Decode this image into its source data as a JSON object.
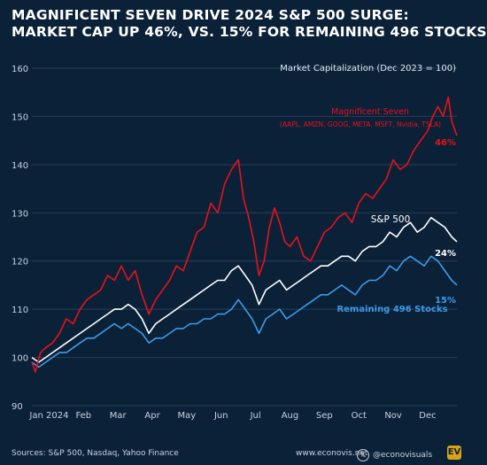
{
  "title": {
    "line1": "MAGNIFICENT SEVEN DRIVE 2024 S&P 500 SURGE:",
    "line2": "MARKET CAP UP 46%, VS. 15% FOR REMAINING 496 STOCKS"
  },
  "chart_data": {
    "type": "line",
    "subtitle": "Market Capitalization (Dec 2023 = 100)",
    "ylim": [
      90,
      160
    ],
    "yticks": [
      90,
      100,
      110,
      120,
      130,
      140,
      150,
      160
    ],
    "xlim": [
      0,
      12.35
    ],
    "xticks": [
      {
        "label": "Jan 2024",
        "x": 0.5
      },
      {
        "label": "Feb",
        "x": 1.5
      },
      {
        "label": "Mar",
        "x": 2.5
      },
      {
        "label": "Apr",
        "x": 3.5
      },
      {
        "label": "May",
        "x": 4.5
      },
      {
        "label": "Jun",
        "x": 5.5
      },
      {
        "label": "Jul",
        "x": 6.5
      },
      {
        "label": "Aug",
        "x": 7.5
      },
      {
        "label": "Sep",
        "x": 8.5
      },
      {
        "label": "Oct",
        "x": 9.5
      },
      {
        "label": "Nov",
        "x": 10.5
      },
      {
        "label": "Dec",
        "x": 11.5
      }
    ],
    "grid": "horizontal",
    "series": [
      {
        "name": "Magnificent Seven",
        "note": "(AAPL, AMZN, GOOG, META, MSFT, Nvidia, TSLA)",
        "end_label": "46%",
        "color": "#e8111a",
        "x": [
          0,
          0.1,
          0.25,
          0.4,
          0.6,
          0.8,
          1.0,
          1.2,
          1.4,
          1.6,
          1.8,
          2.0,
          2.2,
          2.4,
          2.6,
          2.8,
          3.0,
          3.2,
          3.4,
          3.6,
          3.8,
          4.0,
          4.2,
          4.4,
          4.6,
          4.8,
          5.0,
          5.2,
          5.4,
          5.6,
          5.8,
          6.0,
          6.15,
          6.3,
          6.45,
          6.6,
          6.75,
          6.9,
          7.05,
          7.2,
          7.35,
          7.5,
          7.7,
          7.9,
          8.1,
          8.3,
          8.5,
          8.7,
          8.9,
          9.1,
          9.3,
          9.5,
          9.7,
          9.9,
          10.1,
          10.3,
          10.5,
          10.7,
          10.9,
          11.1,
          11.3,
          11.5,
          11.65,
          11.8,
          11.95,
          12.1,
          12.2,
          12.35
        ],
        "y": [
          99,
          97,
          101,
          102,
          103,
          105,
          108,
          107,
          110,
          112,
          113,
          114,
          117,
          116,
          119,
          116,
          118,
          113,
          109,
          112,
          114,
          116,
          119,
          118,
          122,
          126,
          127,
          132,
          130,
          136,
          139,
          141,
          133,
          129,
          124,
          117,
          120,
          127,
          131,
          128,
          124,
          123,
          125,
          121,
          120,
          123,
          126,
          127,
          129,
          130,
          128,
          132,
          134,
          133,
          135,
          137,
          141,
          139,
          140,
          143,
          145,
          147,
          150,
          152,
          150,
          154,
          149,
          146
        ]
      },
      {
        "name": "S&P 500",
        "end_label": "24%",
        "color": "#ffffff",
        "x": [
          0,
          0.2,
          0.4,
          0.6,
          0.8,
          1.0,
          1.2,
          1.4,
          1.6,
          1.8,
          2.0,
          2.2,
          2.4,
          2.6,
          2.8,
          3.0,
          3.2,
          3.4,
          3.6,
          3.8,
          4.0,
          4.2,
          4.4,
          4.6,
          4.8,
          5.0,
          5.2,
          5.4,
          5.6,
          5.8,
          6.0,
          6.2,
          6.4,
          6.6,
          6.8,
          7.0,
          7.2,
          7.4,
          7.6,
          7.8,
          8.0,
          8.2,
          8.4,
          8.6,
          8.8,
          9.0,
          9.2,
          9.4,
          9.6,
          9.8,
          10.0,
          10.2,
          10.4,
          10.6,
          10.8,
          11.0,
          11.2,
          11.4,
          11.6,
          11.8,
          12.0,
          12.2,
          12.35
        ],
        "y": [
          100,
          99,
          100,
          101,
          102,
          103,
          104,
          105,
          106,
          107,
          108,
          109,
          110,
          110,
          111,
          110,
          108,
          105,
          107,
          108,
          109,
          110,
          111,
          112,
          113,
          114,
          115,
          116,
          116,
          118,
          119,
          117,
          115,
          111,
          114,
          115,
          116,
          114,
          115,
          116,
          117,
          118,
          119,
          119,
          120,
          121,
          121,
          120,
          122,
          123,
          123,
          124,
          126,
          125,
          127,
          128,
          126,
          127,
          129,
          128,
          127,
          125,
          124
        ]
      },
      {
        "name": "Remaining 496 Stocks",
        "end_label": "15%",
        "color": "#3d9be9",
        "x": [
          0,
          0.2,
          0.4,
          0.6,
          0.8,
          1.0,
          1.2,
          1.4,
          1.6,
          1.8,
          2.0,
          2.2,
          2.4,
          2.6,
          2.8,
          3.0,
          3.2,
          3.4,
          3.6,
          3.8,
          4.0,
          4.2,
          4.4,
          4.6,
          4.8,
          5.0,
          5.2,
          5.4,
          5.6,
          5.8,
          6.0,
          6.2,
          6.4,
          6.6,
          6.8,
          7.0,
          7.2,
          7.4,
          7.6,
          7.8,
          8.0,
          8.2,
          8.4,
          8.6,
          8.8,
          9.0,
          9.2,
          9.4,
          9.6,
          9.8,
          10.0,
          10.2,
          10.4,
          10.6,
          10.8,
          11.0,
          11.2,
          11.4,
          11.6,
          11.8,
          12.0,
          12.2,
          12.35
        ],
        "y": [
          99,
          98,
          99,
          100,
          101,
          101,
          102,
          103,
          104,
          104,
          105,
          106,
          107,
          106,
          107,
          106,
          105,
          103,
          104,
          104,
          105,
          106,
          106,
          107,
          107,
          108,
          108,
          109,
          109,
          110,
          112,
          110,
          108,
          105,
          108,
          109,
          110,
          108,
          109,
          110,
          111,
          112,
          113,
          113,
          114,
          115,
          114,
          113,
          115,
          116,
          116,
          117,
          119,
          118,
          120,
          121,
          120,
          119,
          121,
          120,
          118,
          116,
          115
        ]
      }
    ]
  },
  "footer": {
    "sources": "Sources: S&P 500, Nasdaq, Yahoo Finance",
    "website": "www.econovis.net",
    "social": "@econovisuals",
    "x_icon": "x-logo-icon",
    "logo_icon": "ev-logo-icon",
    "logo_text": "EV"
  }
}
